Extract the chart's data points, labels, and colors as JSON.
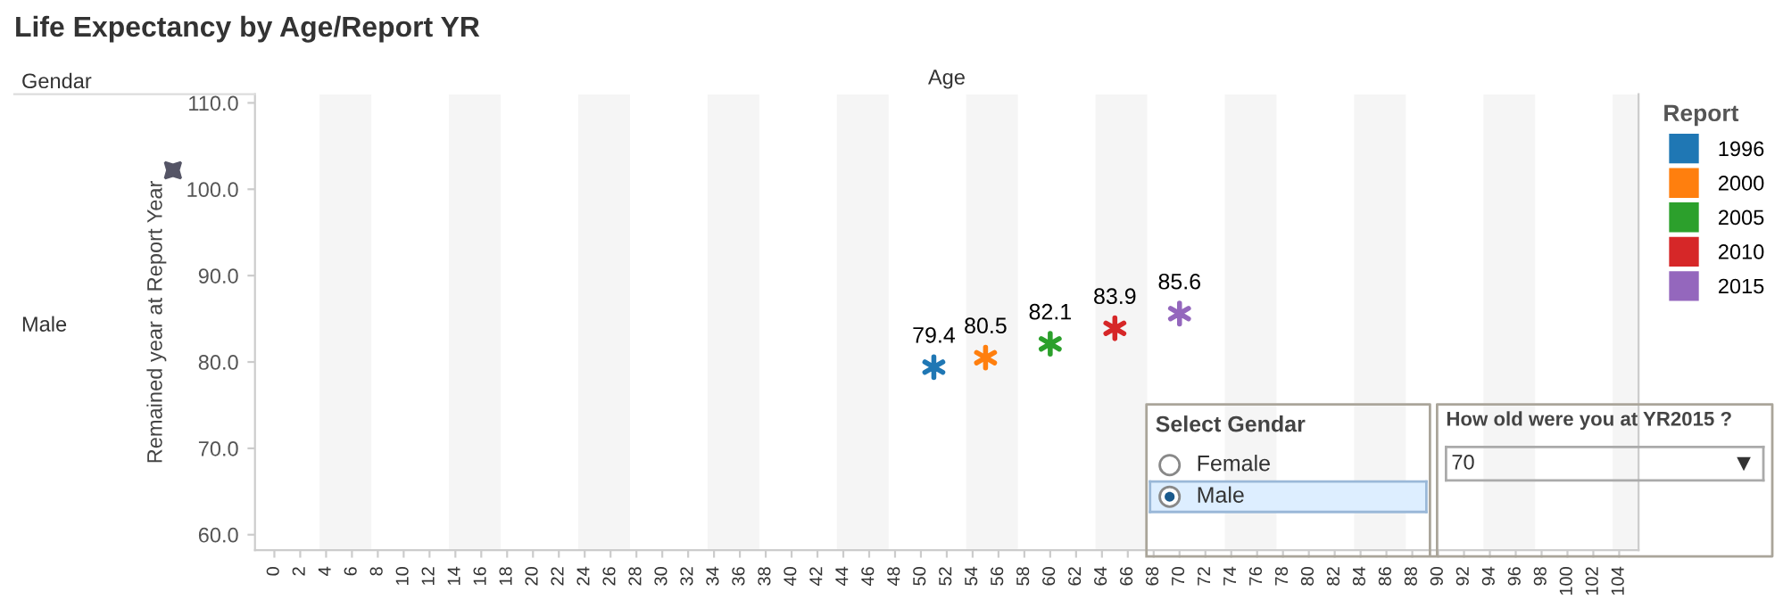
{
  "chart_data": {
    "type": "scatter",
    "title": "Life Expectancy by Age/Report YR",
    "xlabel": "Age",
    "ylabel": "Remained year at Report Year",
    "legend_title": "Report",
    "series": [
      {
        "name": "1996",
        "color": "#1f77b4",
        "x": [
          51
        ],
        "values": [
          79.4
        ]
      },
      {
        "name": "2000",
        "color": "#ff7f0e",
        "x": [
          55
        ],
        "values": [
          80.5
        ]
      },
      {
        "name": "2005",
        "color": "#2ca02c",
        "x": [
          60
        ],
        "values": [
          82.1
        ]
      },
      {
        "name": "2010",
        "color": "#d62728",
        "x": [
          65
        ],
        "values": [
          83.9
        ]
      },
      {
        "name": "2015",
        "color": "#9467bd",
        "x": [
          70
        ],
        "values": [
          85.6
        ]
      }
    ],
    "xlim": [
      -1.5,
      105.5
    ],
    "xticks": [
      0,
      2,
      4,
      6,
      8,
      10,
      12,
      14,
      16,
      18,
      20,
      22,
      24,
      26,
      28,
      30,
      32,
      34,
      36,
      38,
      40,
      42,
      44,
      46,
      48,
      50,
      52,
      54,
      56,
      58,
      60,
      62,
      64,
      66,
      68,
      70,
      72,
      74,
      76,
      78,
      80,
      82,
      84,
      86,
      88,
      90,
      92,
      94,
      96,
      98,
      100,
      102,
      104
    ],
    "ylim": [
      58.2,
      111
    ],
    "yticks": [
      {
        "value": 60,
        "label": "60.0"
      },
      {
        "value": 70,
        "label": "70.0"
      },
      {
        "value": 80,
        "label": "80.0"
      },
      {
        "value": 90,
        "label": "90.0"
      },
      {
        "value": 100,
        "label": "100.0"
      },
      {
        "value": 110,
        "label": "110.0"
      }
    ],
    "bands": [
      {
        "axis": "x",
        "from": 3.5,
        "to": 7.5,
        "color": "#f5f5f5"
      },
      {
        "axis": "x",
        "from": 13.5,
        "to": 17.5,
        "color": "#f5f5f5"
      },
      {
        "axis": "x",
        "from": 23.5,
        "to": 27.5,
        "color": "#f5f5f5"
      },
      {
        "axis": "x",
        "from": 33.5,
        "to": 37.5,
        "color": "#f5f5f5"
      },
      {
        "axis": "x",
        "from": 43.5,
        "to": 47.5,
        "color": "#f5f5f5"
      },
      {
        "axis": "x",
        "from": 53.5,
        "to": 57.5,
        "color": "#f5f5f5"
      },
      {
        "axis": "x",
        "from": 63.5,
        "to": 67.5,
        "color": "#f5f5f5"
      },
      {
        "axis": "x",
        "from": 73.5,
        "to": 77.5,
        "color": "#f5f5f5"
      },
      {
        "axis": "x",
        "from": 83.5,
        "to": 87.5,
        "color": "#f5f5f5"
      },
      {
        "axis": "x",
        "from": 93.5,
        "to": 97.5,
        "color": "#f5f5f5"
      },
      {
        "axis": "x",
        "from": 103.5,
        "to": 105.5,
        "color": "#f5f5f5"
      }
    ],
    "annotations": [
      "Gendar",
      "Male",
      "Select Gendar",
      "Female",
      "Male",
      "How old were you at YR2015 ?",
      "70"
    ],
    "data_labels": true,
    "marker": "cross",
    "legend": "right",
    "grid": false
  }
}
